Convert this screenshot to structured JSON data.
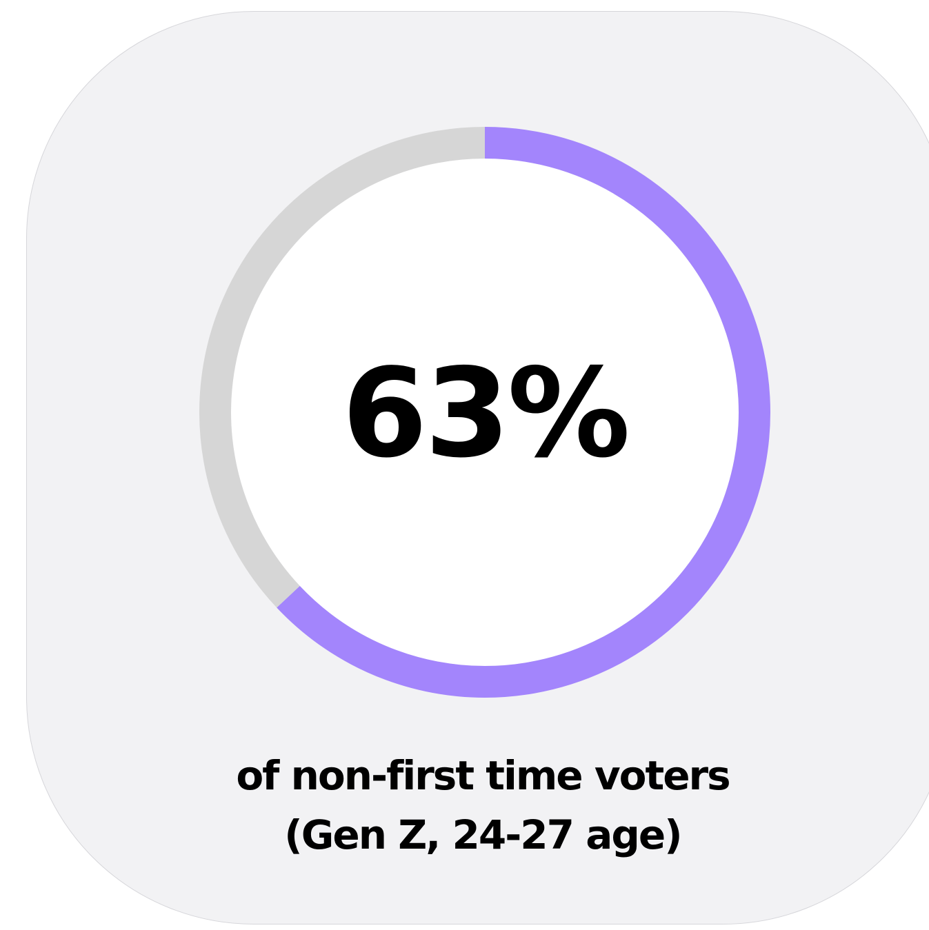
{
  "colors": {
    "background": "#f2f2f4",
    "accent": "#a385fc",
    "track": "#d6d6d6",
    "center": "#ffffff",
    "text": "#000000"
  },
  "chart_data": {
    "type": "pie",
    "variant": "donut",
    "value_label": "63%",
    "slices": [
      {
        "value": 63,
        "color": "#a385fc"
      },
      {
        "value": 37,
        "color": "#d6d6d6"
      }
    ],
    "caption_lines": [
      "of non-first time voters",
      "(Gen Z, 24-27 age)"
    ]
  }
}
